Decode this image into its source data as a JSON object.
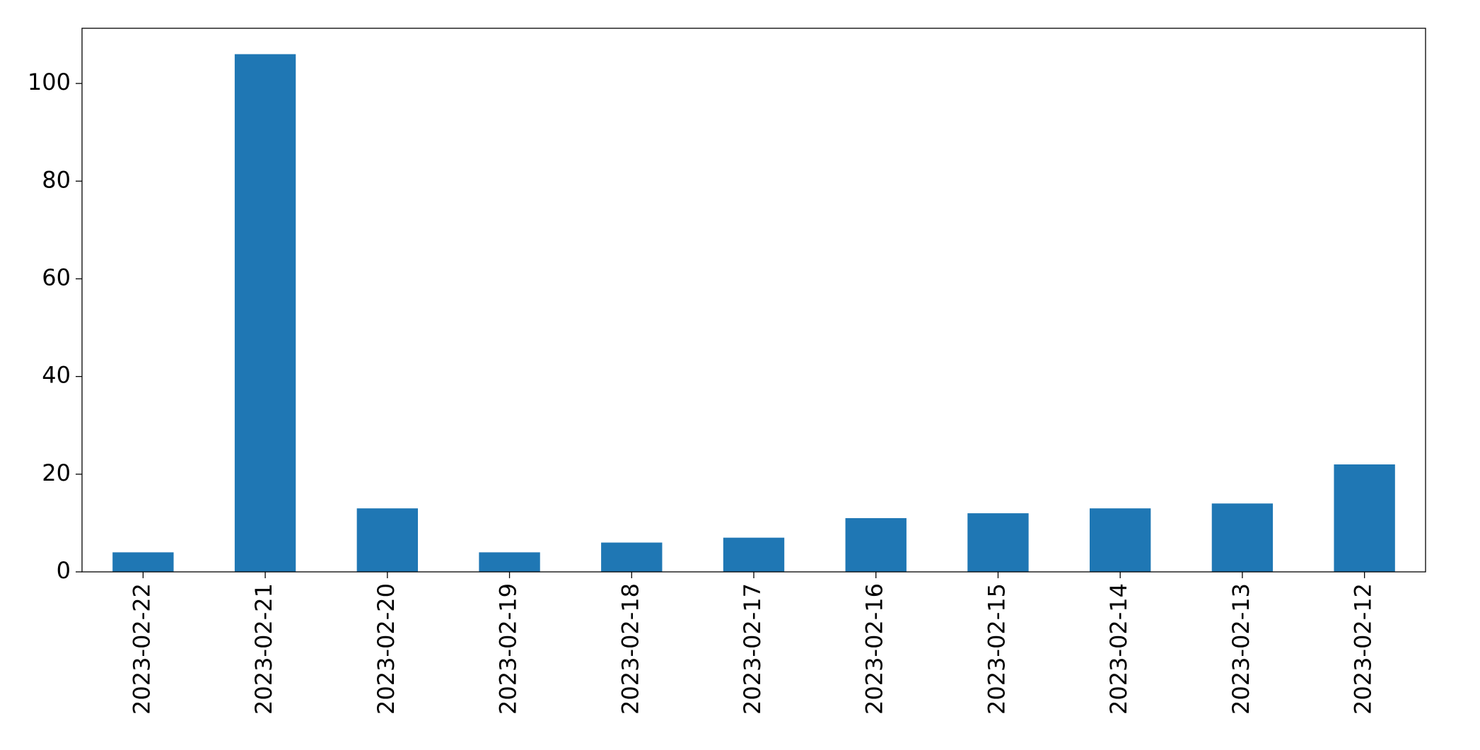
{
  "chart_data": {
    "type": "bar",
    "categories": [
      "2023-02-22",
      "2023-02-21",
      "2023-02-20",
      "2023-02-19",
      "2023-02-18",
      "2023-02-17",
      "2023-02-16",
      "2023-02-15",
      "2023-02-14",
      "2023-02-13",
      "2023-02-12"
    ],
    "values": [
      4,
      106,
      13,
      4,
      6,
      7,
      11,
      12,
      13,
      14,
      22
    ],
    "color": "#1f77b4",
    "ylim": [
      0,
      111.3
    ],
    "yticks": [
      0,
      20,
      40,
      60,
      80,
      100
    ],
    "grid": false
  }
}
